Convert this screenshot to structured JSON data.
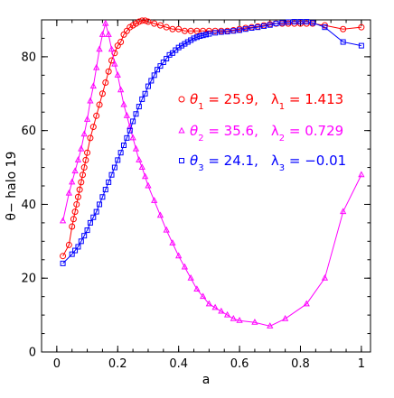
{
  "chart_data": {
    "type": "line",
    "xlabel": "a",
    "ylabel": "θ− halo 19",
    "xlim": [
      -0.05,
      1.03
    ],
    "ylim": [
      0,
      90
    ],
    "xticks": [
      {
        "value": 0,
        "label": "0"
      },
      {
        "value": 0.2,
        "label": "0.2"
      },
      {
        "value": 0.4,
        "label": "0.4"
      },
      {
        "value": 0.6,
        "label": "0.6"
      },
      {
        "value": 0.8,
        "label": "0.8"
      },
      {
        "value": 1,
        "label": "1"
      }
    ],
    "yticks": [
      {
        "value": 0,
        "label": "0"
      },
      {
        "value": 20,
        "label": "20"
      },
      {
        "value": 40,
        "label": "40"
      },
      {
        "value": 60,
        "label": "60"
      },
      {
        "value": 80,
        "label": "80"
      }
    ],
    "grid": false,
    "legend_position": "right",
    "series": [
      {
        "color": "#ff0000",
        "marker": "circle",
        "legend": {
          "sym": "θ",
          "sub": "1",
          "val": "25.9,",
          "lsym": "λ",
          "lsub": "1",
          "lval": "1.413"
        },
        "x": [
          0.02,
          0.04,
          0.05,
          0.055,
          0.06,
          0.065,
          0.07,
          0.075,
          0.08,
          0.085,
          0.09,
          0.095,
          0.1,
          0.11,
          0.12,
          0.13,
          0.14,
          0.15,
          0.16,
          0.17,
          0.18,
          0.19,
          0.2,
          0.21,
          0.22,
          0.23,
          0.24,
          0.25,
          0.26,
          0.27,
          0.28,
          0.29,
          0.3,
          0.32,
          0.34,
          0.36,
          0.38,
          0.4,
          0.42,
          0.44,
          0.46,
          0.48,
          0.5,
          0.52,
          0.54,
          0.56,
          0.58,
          0.6,
          0.62,
          0.64,
          0.66,
          0.68,
          0.7,
          0.72,
          0.74,
          0.76,
          0.78,
          0.8,
          0.82,
          0.84,
          0.88,
          0.94,
          1.0
        ],
        "y": [
          26,
          29,
          34,
          36,
          38,
          40,
          42,
          44,
          46,
          48,
          50,
          52,
          54,
          58,
          61,
          64,
          67,
          70,
          73,
          76,
          79,
          81,
          83,
          84,
          86,
          87,
          88,
          88.5,
          89,
          89.5,
          89.8,
          89.8,
          89.5,
          89,
          88.5,
          88,
          87.5,
          87.5,
          87,
          87,
          87,
          87,
          87,
          87,
          87,
          87,
          87.2,
          87.5,
          87.8,
          88,
          88.2,
          88.5,
          88.8,
          89,
          89,
          89,
          89,
          89,
          89,
          89,
          88.5,
          87.5,
          88
        ]
      },
      {
        "color": "#ff00ff",
        "marker": "triangle",
        "legend": {
          "sym": "θ",
          "sub": "2",
          "val": "35.6,",
          "lsym": "λ",
          "lsub": "2",
          "lval": "0.729"
        },
        "x": [
          0.02,
          0.04,
          0.05,
          0.06,
          0.07,
          0.08,
          0.09,
          0.1,
          0.11,
          0.12,
          0.13,
          0.14,
          0.15,
          0.16,
          0.17,
          0.18,
          0.19,
          0.2,
          0.21,
          0.22,
          0.23,
          0.24,
          0.25,
          0.26,
          0.27,
          0.28,
          0.29,
          0.3,
          0.32,
          0.34,
          0.36,
          0.38,
          0.4,
          0.42,
          0.44,
          0.46,
          0.48,
          0.5,
          0.52,
          0.54,
          0.56,
          0.58,
          0.6,
          0.65,
          0.7,
          0.75,
          0.82,
          0.88,
          0.94,
          1.0
        ],
        "y": [
          35.5,
          43,
          46,
          49,
          52,
          55,
          59,
          63,
          68,
          72,
          77,
          82,
          86,
          89,
          86,
          82,
          78,
          75,
          71,
          67,
          64,
          61,
          58,
          55,
          52,
          50,
          47.5,
          45,
          41,
          37,
          33,
          29.5,
          26,
          23,
          20,
          17,
          15,
          13,
          12,
          11,
          10,
          9,
          8.5,
          8,
          7,
          9,
          13,
          20,
          38,
          48
        ]
      },
      {
        "color": "#0000ff",
        "marker": "square",
        "legend": {
          "sym": "θ",
          "sub": "3",
          "val": "24.1,",
          "lsym": "λ",
          "lsub": "3",
          "lval": "−0.01"
        },
        "x": [
          0.02,
          0.05,
          0.06,
          0.07,
          0.08,
          0.09,
          0.1,
          0.11,
          0.12,
          0.13,
          0.14,
          0.15,
          0.16,
          0.17,
          0.18,
          0.19,
          0.2,
          0.21,
          0.22,
          0.23,
          0.24,
          0.25,
          0.26,
          0.27,
          0.28,
          0.29,
          0.3,
          0.31,
          0.32,
          0.33,
          0.34,
          0.35,
          0.36,
          0.37,
          0.38,
          0.39,
          0.4,
          0.41,
          0.42,
          0.43,
          0.44,
          0.45,
          0.46,
          0.47,
          0.48,
          0.49,
          0.5,
          0.52,
          0.54,
          0.56,
          0.58,
          0.6,
          0.62,
          0.64,
          0.66,
          0.68,
          0.7,
          0.72,
          0.74,
          0.76,
          0.78,
          0.8,
          0.82,
          0.84,
          0.88,
          0.94,
          1.0
        ],
        "y": [
          24,
          26.5,
          27.5,
          28.5,
          30,
          31.5,
          33,
          35,
          36.5,
          38,
          40,
          42,
          44,
          46,
          48,
          50,
          52,
          54,
          56,
          58,
          60,
          62.5,
          64.5,
          66.5,
          68.5,
          70,
          72,
          73.5,
          75,
          76.5,
          77.5,
          78.5,
          79.5,
          80.5,
          81,
          81.8,
          82.5,
          83,
          83.5,
          84,
          84.5,
          85,
          85.3,
          85.6,
          85.8,
          86,
          86.2,
          86.5,
          86.7,
          86.8,
          87,
          87.2,
          87.5,
          87.8,
          88,
          88.3,
          88.6,
          89,
          89.2,
          89.4,
          89.5,
          89.5,
          89.5,
          89.2,
          88,
          84,
          83
        ]
      }
    ]
  }
}
